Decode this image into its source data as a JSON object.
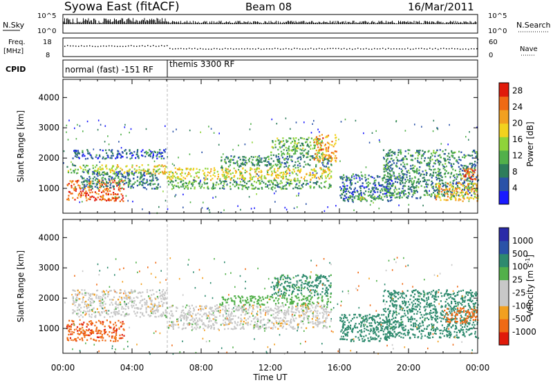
{
  "header": {
    "title": "Syowa East (fitACF)",
    "beam": "Beam 08",
    "date": "16/Mar/2011"
  },
  "top_panels": {
    "nsky_label": "N.Sky",
    "nsky_ticks": [
      "10^5",
      "10^0"
    ],
    "nsearch_label": "N.Search",
    "nsearch_ticks": [
      "10^5",
      "10^0"
    ],
    "freq_label": "Freq.",
    "freq_unit": "[MHz]",
    "freq_ticks": [
      "18",
      "8"
    ],
    "nave_label": "Nave",
    "nave_ticks": [
      "60",
      "0"
    ],
    "cpid_label": "CPID",
    "cpid_modes": [
      {
        "label": "normal (fast) -151 RF",
        "start": "00:00",
        "end": "06:00"
      },
      {
        "label": "themis 3300 RF",
        "start": "06:00",
        "end": "24:00"
      }
    ]
  },
  "colors": {
    "power_scale": [
      "#1a1aff",
      "#2a52a8",
      "#2e7d5b",
      "#52b04a",
      "#8fd43a",
      "#f2d21e",
      "#f2a020",
      "#f06a14",
      "#e01a0a"
    ],
    "velocity_scale": [
      "#e01a0a",
      "#f06a14",
      "#f2a020",
      "#c8c8c8",
      "#c8c8c8",
      "#52b04a",
      "#2e8a6e",
      "#2a52a8",
      "#2a2aa8"
    ]
  },
  "chart_data": [
    {
      "type": "heatmap",
      "title": "",
      "xlabel": "Time UT",
      "ylabel": "Slant Range [km]",
      "x_ticks": [
        "00:00",
        "04:00",
        "08:00",
        "12:00",
        "16:00",
        "20:00",
        "00:00"
      ],
      "y_ticks": [
        "1000",
        "2000",
        "3000",
        "4000"
      ],
      "xlim_hours": [
        0,
        24
      ],
      "ylim_km": [
        180,
        4600
      ],
      "colorbar": {
        "label": "Power [dB]",
        "ticks": [
          "4",
          "8",
          "12",
          "16",
          "20",
          "24",
          "28"
        ],
        "range": [
          0,
          30
        ]
      },
      "regions": [
        {
          "t0": 0.2,
          "t1": 3.5,
          "r0": 600,
          "r1": 1300,
          "value": 25
        },
        {
          "t0": 0.2,
          "t1": 2.0,
          "r0": 1500,
          "r1": 1800,
          "value": 14
        },
        {
          "t0": 2.0,
          "t1": 6.0,
          "r0": 1500,
          "r1": 1800,
          "value": 18
        },
        {
          "t0": 1.0,
          "t1": 5.5,
          "r0": 1000,
          "r1": 1600,
          "value": 8
        },
        {
          "t0": 0.5,
          "t1": 6.0,
          "r0": 2000,
          "r1": 2300,
          "value": 6
        },
        {
          "t0": 6.0,
          "t1": 15.5,
          "r0": 1300,
          "r1": 1700,
          "value": 18
        },
        {
          "t0": 6.0,
          "t1": 15.5,
          "r0": 1000,
          "r1": 1300,
          "value": 11
        },
        {
          "t0": 9.0,
          "t1": 15.5,
          "r0": 1700,
          "r1": 2100,
          "value": 9
        },
        {
          "t0": 12.0,
          "t1": 15.0,
          "r0": 2100,
          "r1": 2700,
          "value": 12
        },
        {
          "t0": 14.5,
          "t1": 15.8,
          "r0": 1900,
          "r1": 2800,
          "value": 22
        },
        {
          "t0": 16.0,
          "t1": 19.0,
          "r0": 600,
          "r1": 1500,
          "value": 7
        },
        {
          "t0": 16.5,
          "t1": 18.5,
          "r0": 650,
          "r1": 800,
          "value": 14
        },
        {
          "t0": 18.5,
          "t1": 24.0,
          "r0": 700,
          "r1": 2300,
          "value": 9
        },
        {
          "t0": 21.5,
          "t1": 24.0,
          "r0": 600,
          "r1": 1200,
          "value": 20
        },
        {
          "t0": 23.0,
          "t1": 24.0,
          "r0": 1300,
          "r1": 1700,
          "value": 26
        }
      ]
    },
    {
      "type": "heatmap",
      "title": "",
      "xlabel": "Time UT",
      "ylabel": "Slant Range [km]",
      "x_ticks": [
        "00:00",
        "04:00",
        "08:00",
        "12:00",
        "16:00",
        "20:00",
        "00:00"
      ],
      "y_ticks": [
        "1000",
        "2000",
        "3000",
        "4000"
      ],
      "xlim_hours": [
        0,
        24
      ],
      "ylim_km": [
        180,
        4600
      ],
      "colorbar": {
        "label": "Velocity [m s^-1]",
        "ticks": [
          "1000",
          "500",
          "100",
          "25",
          "-25",
          "-100",
          "-500",
          "-1000"
        ]
      },
      "regions": [
        {
          "t0": 0.2,
          "t1": 3.5,
          "r0": 600,
          "r1": 1300,
          "value": -400
        },
        {
          "t0": 0.5,
          "t1": 6.0,
          "r0": 1400,
          "r1": 2300,
          "value": 0
        },
        {
          "t0": 6.0,
          "t1": 15.5,
          "r0": 1000,
          "r1": 1800,
          "value": 0
        },
        {
          "t0": 9.0,
          "t1": 15.5,
          "r0": 1800,
          "r1": 2100,
          "value": 60
        },
        {
          "t0": 12.0,
          "t1": 15.5,
          "r0": 2100,
          "r1": 2800,
          "value": 150
        },
        {
          "t0": 16.0,
          "t1": 19.0,
          "r0": 600,
          "r1": 1500,
          "value": 200
        },
        {
          "t0": 18.5,
          "t1": 24.0,
          "r0": 700,
          "r1": 2300,
          "value": 300
        },
        {
          "t0": 22.0,
          "t1": 24.0,
          "r0": 1200,
          "r1": 1700,
          "value": -300
        }
      ]
    }
  ]
}
